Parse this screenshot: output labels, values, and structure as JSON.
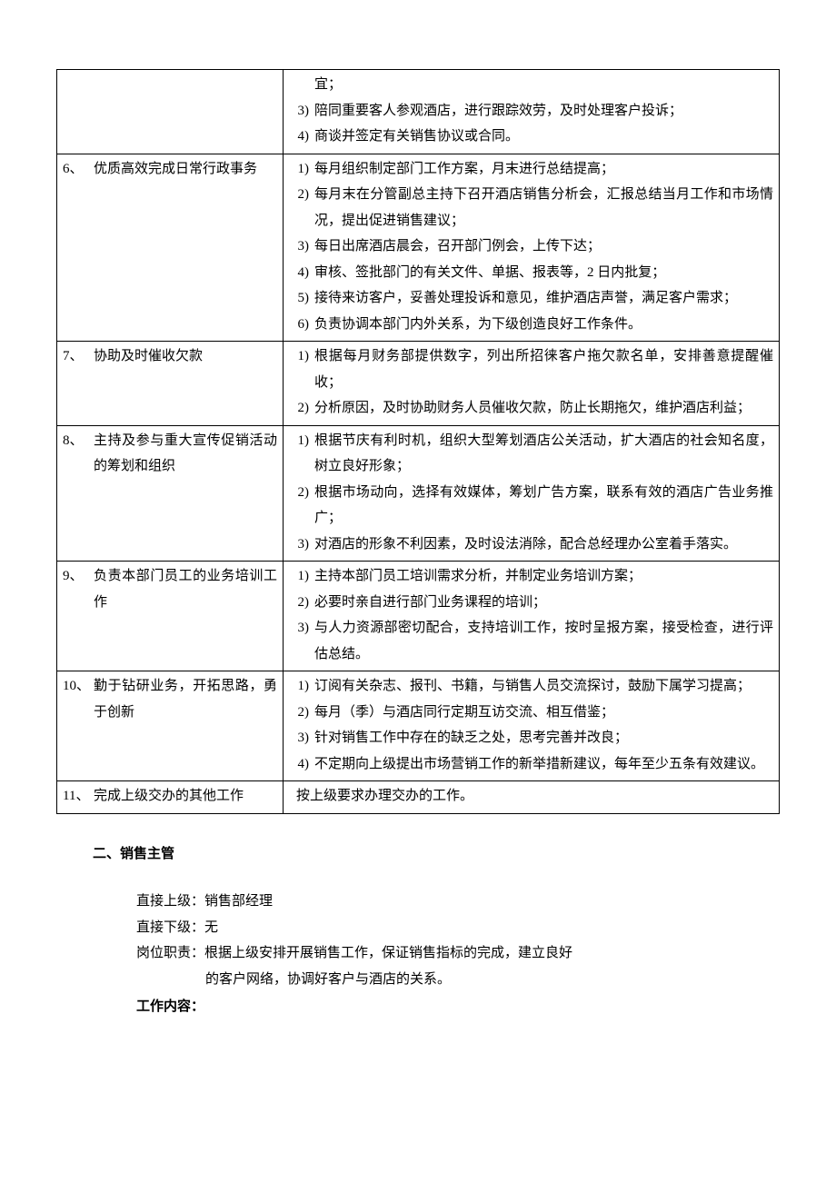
{
  "table": {
    "rows": [
      {
        "duty": "",
        "tasks": [
          {
            "n": "",
            "t": "宜；"
          },
          {
            "n": "3)",
            "t": "陪同重要客人参观酒店，进行跟踪效劳，及时处理客户投诉；"
          },
          {
            "n": "4)",
            "t": "商谈并签定有关销售协议或合同。"
          }
        ]
      },
      {
        "duty_n": "6、",
        "duty_t": "优质高效完成日常行政事务",
        "tasks": [
          {
            "n": "1)",
            "t": "每月组织制定部门工作方案，月末进行总结提高；"
          },
          {
            "n": "2)",
            "t": "每月末在分管副总主持下召开酒店销售分析会，汇报总结当月工作和市场情况，提出促进销售建议；"
          },
          {
            "n": "3)",
            "t": "每日出席酒店晨会，召开部门例会，上传下达；"
          },
          {
            "n": "4)",
            "t": "审核、签批部门的有关文件、单据、报表等，2 日内批复；"
          },
          {
            "n": "5)",
            "t": "接待来访客户，妥善处理投诉和意见，维护酒店声誉，满足客户需求；"
          },
          {
            "n": "6)",
            "t": "负责协调本部门内外关系，为下级创造良好工作条件。"
          }
        ]
      },
      {
        "duty_n": "7、",
        "duty_t": "协助及时催收欠款",
        "tasks": [
          {
            "n": "1)",
            "t": "根据每月财务部提供数字，列出所招徕客户拖欠款名单，安排善意提醒催收；"
          },
          {
            "n": "2)",
            "t": "分析原因，及时协助财务人员催收欠款，防止长期拖欠，维护酒店利益；"
          }
        ]
      },
      {
        "duty_n": "8、",
        "duty_t": "主持及参与重大宣传促销活动的筹划和组织",
        "tasks": [
          {
            "n": "1)",
            "t": "根据节庆有利时机，组织大型筹划酒店公关活动，扩大酒店的社会知名度，树立良好形象；"
          },
          {
            "n": "2)",
            "t": "根据市场动向，选择有效媒体，筹划广告方案，联系有效的酒店广告业务推广；"
          },
          {
            "n": "3)",
            "t": "对酒店的形象不利因素，及时设法消除，配合总经理办公室着手落实。"
          }
        ]
      },
      {
        "duty_n": "9、",
        "duty_t": "负责本部门员工的业务培训工作",
        "tasks": [
          {
            "n": "1)",
            "t": "主持本部门员工培训需求分析，并制定业务培训方案；"
          },
          {
            "n": "2)",
            "t": "必要时亲自进行部门业务课程的培训；"
          },
          {
            "n": "3)",
            "t": "与人力资源部密切配合，支持培训工作，按时呈报方案，接受检查，进行评估总结。"
          }
        ]
      },
      {
        "duty_n": "10、",
        "duty_t": "勤于钻研业务，开拓思路，勇于创新",
        "tasks": [
          {
            "n": "1)",
            "t": "订阅有关杂志、报刊、书籍，与销售人员交流探讨，鼓励下属学习提高；"
          },
          {
            "n": "2)",
            "t": "每月（季）与酒店同行定期互访交流、相互借鉴；"
          },
          {
            "n": "3)",
            "t": "针对销售工作中存在的缺乏之处，思考完善并改良；"
          },
          {
            "n": "4)",
            "t": "不定期向上级提出市场营销工作的新举措新建议，每年至少五条有效建议。"
          }
        ]
      },
      {
        "duty_n": "11、",
        "duty_t": "完成上级交办的其他工作",
        "single": "按上级要求办理交办的工作。"
      }
    ]
  },
  "section2": {
    "title": "二、销售主管",
    "superior_label": "直接上级：",
    "superior_value": "销售部经理",
    "subordinate_label": "直接下级：",
    "subordinate_value": "无",
    "duty_label": "岗位职责：",
    "duty_value_l1": "根据上级安排开展销售工作，保证销售指标的完成，建立良好",
    "duty_value_l2": "的客户网络，协调好客户与酒店的关系。",
    "work_label": "工作内容："
  }
}
